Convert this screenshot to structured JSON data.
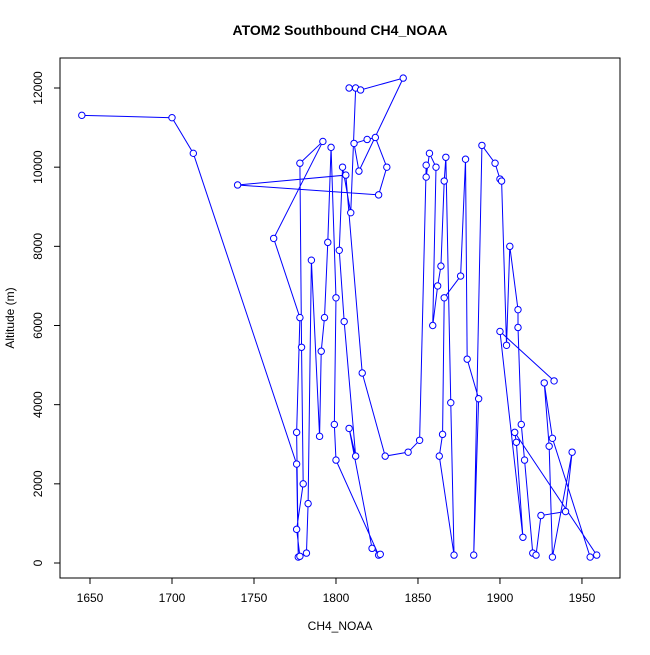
{
  "chart_data": {
    "type": "line",
    "title": "ATOM2 Southbound CH4_NOAA",
    "x_label": "CH4_NOAA",
    "y_label": "Altitude (m)",
    "color": "#0000ff",
    "markers": true,
    "xlim": [
      1631.7,
      1973.2
    ],
    "ylim": [
      -379,
      12758
    ],
    "xticks": [
      1650,
      1700,
      1750,
      1800,
      1850,
      1900,
      1950
    ],
    "yticks": [
      0,
      2000,
      4000,
      6000,
      8000,
      10000,
      12000
    ],
    "x": [
      1645,
      1700,
      1713,
      1776,
      1777,
      1776,
      1778,
      1762,
      1792,
      1778,
      1779,
      1780,
      1776,
      1778,
      1782,
      1783,
      1785,
      1790,
      1791,
      1793,
      1795,
      1797,
      1800,
      1799,
      1800,
      1826,
      1827,
      1822,
      1808,
      1812,
      1805,
      1802,
      1804,
      1809,
      1812,
      1808,
      1815,
      1841,
      1814,
      1811,
      1819,
      1824,
      1831,
      1826,
      1740,
      1806,
      1816,
      1830,
      1844,
      1851,
      1855,
      1855,
      1857,
      1861,
      1859,
      1862,
      1864,
      1866,
      1867,
      1870,
      1872,
      1863,
      1865,
      1866,
      1876,
      1879,
      1880,
      1887,
      1884,
      1889,
      1897,
      1900,
      1901,
      1904,
      1906,
      1911,
      1911,
      1913,
      1915,
      1920,
      1922,
      1925,
      1940,
      1944,
      1932,
      1930,
      1927,
      1932,
      1955,
      1959,
      1909,
      1910,
      1914,
      1900,
      1933
    ],
    "values": [
      11310,
      11250,
      10350,
      2500,
      150,
      3300,
      6200,
      8200,
      10650,
      10100,
      5450,
      2000,
      850,
      170,
      250,
      1500,
      7650,
      3200,
      5350,
      6200,
      8100,
      10500,
      6700,
      3500,
      2600,
      200,
      220,
      370,
      3400,
      2700,
      6100,
      7900,
      10000,
      8850,
      12000,
      12000,
      11950,
      12250,
      9900,
      10600,
      10700,
      10750,
      10000,
      9300,
      9550,
      9800,
      4800,
      2700,
      2800,
      3100,
      10050,
      9750,
      10350,
      10000,
      6000,
      7000,
      7500,
      9650,
      10250,
      4050,
      200,
      2700,
      3250,
      6700,
      7250,
      10200,
      5150,
      4150,
      200,
      10550,
      10100,
      9700,
      9650,
      5500,
      8000,
      6400,
      5950,
      3500,
      2600,
      250,
      200,
      1200,
      1300,
      2800,
      150,
      2950,
      4550,
      3150,
      150,
      200,
      3300,
      3050,
      650,
      5850,
      4600
    ]
  }
}
